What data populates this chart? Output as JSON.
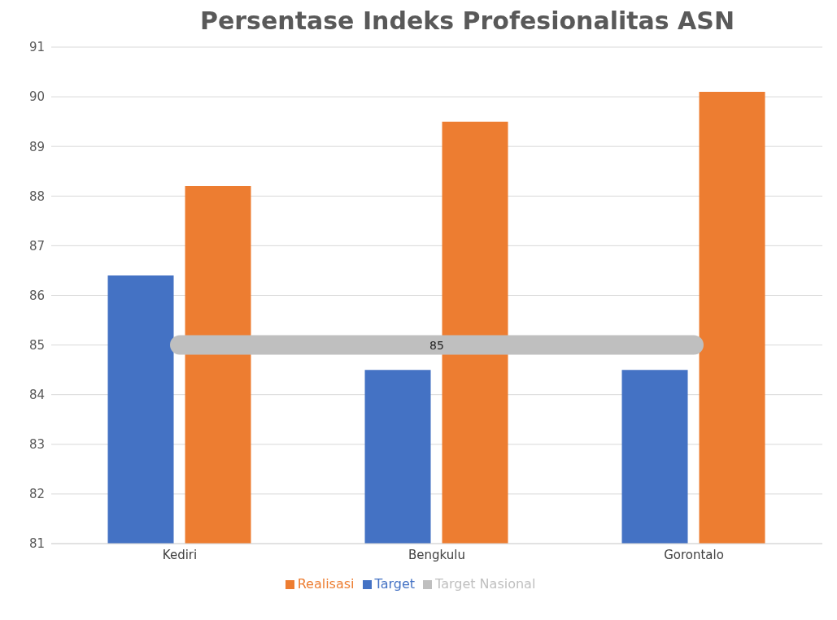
{
  "chart_data": {
    "type": "bar",
    "title": "Persentase Indeks Profesionalitas ASN",
    "categories": [
      "Kediri",
      "Bengkulu",
      "Gorontalo"
    ],
    "series": [
      {
        "name": "Target",
        "color": "#4472c4",
        "values": [
          86.4,
          84.5,
          84.5
        ]
      },
      {
        "name": "Realisasi",
        "color": "#ed7d31",
        "values": [
          88.2,
          89.5,
          90.1
        ]
      },
      {
        "name": "Target Nasional",
        "type": "line",
        "color": "#bfbfbf",
        "values": [
          85,
          85,
          85
        ],
        "value_labels": [
          null,
          "85",
          null
        ]
      }
    ],
    "ylim": [
      81,
      91
    ],
    "yticks": [
      81,
      82,
      83,
      84,
      85,
      86,
      87,
      88,
      89,
      90,
      91
    ],
    "grid": "y",
    "legend": "bottom"
  }
}
